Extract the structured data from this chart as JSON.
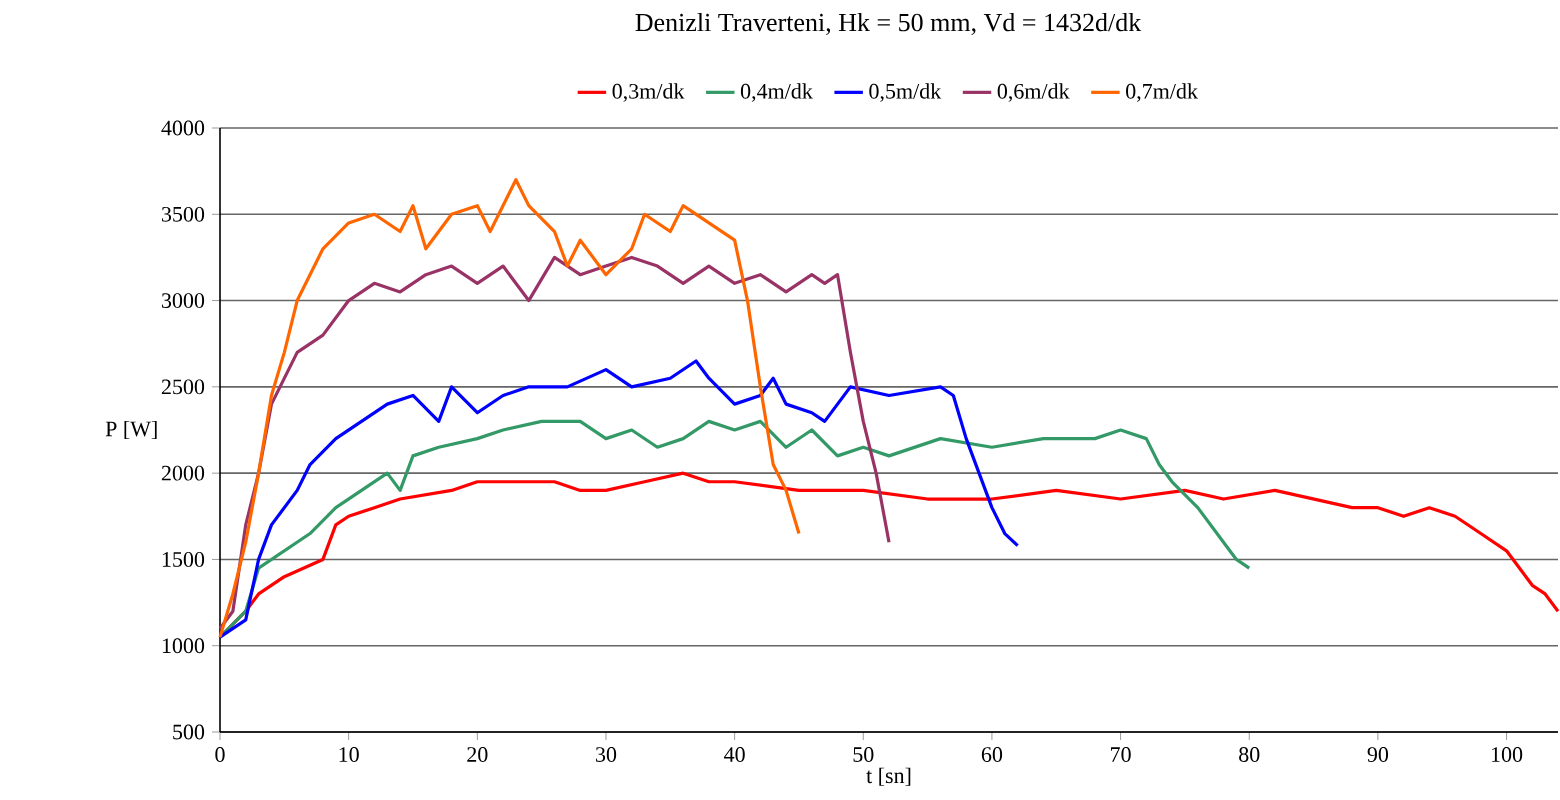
{
  "chart_data": {
    "type": "line",
    "title": "Denizli Traverteni, Hk = 50 mm, Vd = 1432d/dk",
    "xlabel": "t [sn]",
    "ylabel": "P [W]",
    "xlim": [
      0,
      104
    ],
    "xticks": [
      0,
      10,
      20,
      30,
      40,
      50,
      60,
      70,
      80,
      90,
      100
    ],
    "ylim": [
      500,
      4000
    ],
    "yticks": [
      500,
      1000,
      1500,
      2000,
      2500,
      3000,
      3500,
      4000
    ],
    "grid": "y",
    "legend": "top",
    "series": [
      {
        "name": "0,3m/dk",
        "color": "#ff0000",
        "x": [
          0,
          2,
          3,
          5,
          8,
          9,
          10,
          12,
          14,
          18,
          20,
          26,
          28,
          30,
          33,
          36,
          38,
          40,
          45,
          50,
          55,
          60,
          65,
          70,
          75,
          78,
          82,
          85,
          88,
          90,
          92,
          94,
          96,
          98,
          100,
          101,
          102,
          103,
          104
        ],
        "values": [
          1050,
          1200,
          1300,
          1400,
          1500,
          1700,
          1750,
          1800,
          1850,
          1900,
          1950,
          1950,
          1900,
          1900,
          1950,
          2000,
          1950,
          1950,
          1900,
          1900,
          1850,
          1850,
          1900,
          1850,
          1900,
          1850,
          1900,
          1850,
          1800,
          1800,
          1750,
          1800,
          1750,
          1650,
          1550,
          1450,
          1350,
          1300,
          1200
        ]
      },
      {
        "name": "0,4m/dk",
        "color": "#339966",
        "x": [
          0,
          2,
          3,
          5,
          7,
          9,
          11,
          13,
          14,
          15,
          17,
          20,
          22,
          25,
          28,
          30,
          32,
          34,
          36,
          38,
          40,
          42,
          44,
          46,
          48,
          50,
          52,
          56,
          60,
          64,
          68,
          70,
          72,
          73,
          74,
          76,
          77,
          78,
          79,
          80
        ],
        "values": [
          1050,
          1200,
          1450,
          1550,
          1650,
          1800,
          1900,
          2000,
          1900,
          2100,
          2150,
          2200,
          2250,
          2300,
          2300,
          2200,
          2250,
          2150,
          2200,
          2300,
          2250,
          2300,
          2150,
          2250,
          2100,
          2150,
          2100,
          2200,
          2150,
          2200,
          2200,
          2250,
          2200,
          2050,
          1950,
          1800,
          1700,
          1600,
          1500,
          1450
        ]
      },
      {
        "name": "0,5m/dk",
        "color": "#0000ff",
        "x": [
          0,
          2,
          3,
          4,
          6,
          7,
          9,
          11,
          13,
          15,
          17,
          18,
          20,
          22,
          24,
          27,
          30,
          32,
          35,
          37,
          38,
          40,
          42,
          43,
          44,
          46,
          47,
          49,
          52,
          56,
          57,
          58,
          59,
          60,
          61,
          62
        ],
        "values": [
          1050,
          1150,
          1500,
          1700,
          1900,
          2050,
          2200,
          2300,
          2400,
          2450,
          2300,
          2500,
          2350,
          2450,
          2500,
          2500,
          2600,
          2500,
          2550,
          2650,
          2550,
          2400,
          2450,
          2550,
          2400,
          2350,
          2300,
          2500,
          2450,
          2500,
          2450,
          2200,
          2000,
          1800,
          1650,
          1580
        ]
      },
      {
        "name": "0,6m/dk",
        "color": "#993366",
        "x": [
          0,
          1,
          2,
          3,
          4,
          5,
          6,
          8,
          10,
          12,
          14,
          16,
          18,
          20,
          22,
          24,
          26,
          28,
          30,
          32,
          34,
          36,
          38,
          40,
          42,
          44,
          46,
          47,
          48,
          49,
          50,
          51,
          52
        ],
        "values": [
          1100,
          1200,
          1700,
          2000,
          2400,
          2550,
          2700,
          2800,
          3000,
          3100,
          3050,
          3150,
          3200,
          3100,
          3200,
          3000,
          3250,
          3150,
          3200,
          3250,
          3200,
          3100,
          3200,
          3100,
          3150,
          3050,
          3150,
          3100,
          3150,
          2700,
          2300,
          2000,
          1600
        ]
      },
      {
        "name": "0,7m/dk",
        "color": "#ff6600",
        "x": [
          0,
          1,
          2,
          3,
          4,
          5,
          6,
          8,
          10,
          12,
          14,
          15,
          16,
          18,
          20,
          21,
          23,
          24,
          26,
          27,
          28,
          30,
          32,
          33,
          35,
          36,
          38,
          40,
          41,
          42,
          43,
          44,
          45
        ],
        "values": [
          1050,
          1300,
          1600,
          2000,
          2450,
          2700,
          3000,
          3300,
          3450,
          3500,
          3400,
          3550,
          3300,
          3500,
          3550,
          3400,
          3700,
          3550,
          3400,
          3200,
          3350,
          3150,
          3300,
          3500,
          3400,
          3550,
          3450,
          3350,
          3000,
          2500,
          2050,
          1900,
          1650
        ]
      }
    ]
  }
}
